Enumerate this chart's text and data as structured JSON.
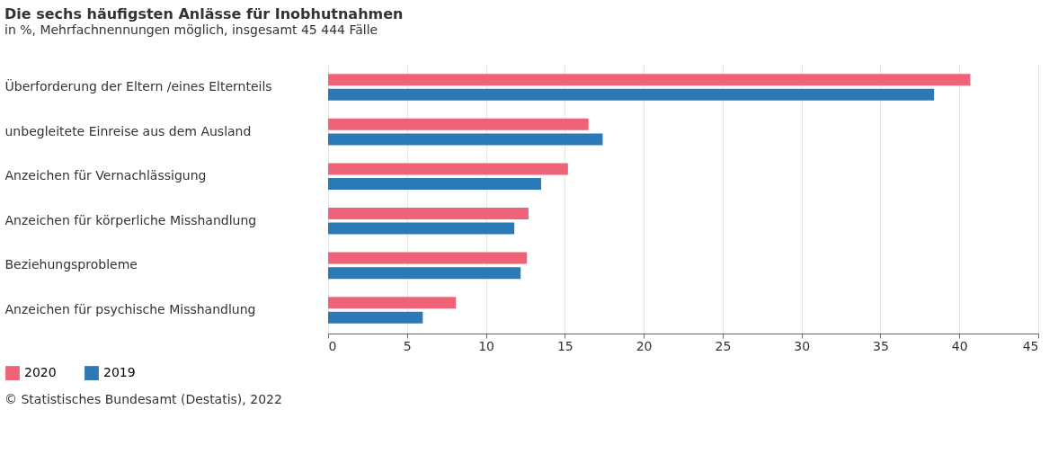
{
  "chart_data": {
    "type": "bar",
    "orientation": "horizontal",
    "title": "Die sechs häufigsten Anlässe für Inobhutnahmen",
    "subtitle": "in %, Mehrfachnennungen möglich, insgesamt 45 444 Fälle",
    "categories": [
      "Überforderung der Eltern /eines Elternteils",
      "unbegleitete Einreise aus dem Ausland",
      "Anzeichen für Vernachlässigung",
      "Anzeichen für körperliche Misshandlung",
      "Beziehungsprobleme",
      "Anzeichen für psychische Misshandlung"
    ],
    "series": [
      {
        "name": "2020",
        "color": "#ee6377",
        "values": [
          40.7,
          16.5,
          15.2,
          12.7,
          12.6,
          8.1
        ]
      },
      {
        "name": "2019",
        "color": "#2b79b6",
        "values": [
          38.4,
          17.4,
          13.5,
          11.8,
          12.2,
          6.0
        ]
      }
    ],
    "xlim": [
      0,
      45
    ],
    "xticks": [
      0,
      5,
      10,
      15,
      20,
      25,
      30,
      35,
      40,
      45
    ],
    "grid": "x",
    "legend": "bottom left",
    "annotations": [
      "© Statistisches Bundesamt (Destatis), 2022"
    ]
  }
}
